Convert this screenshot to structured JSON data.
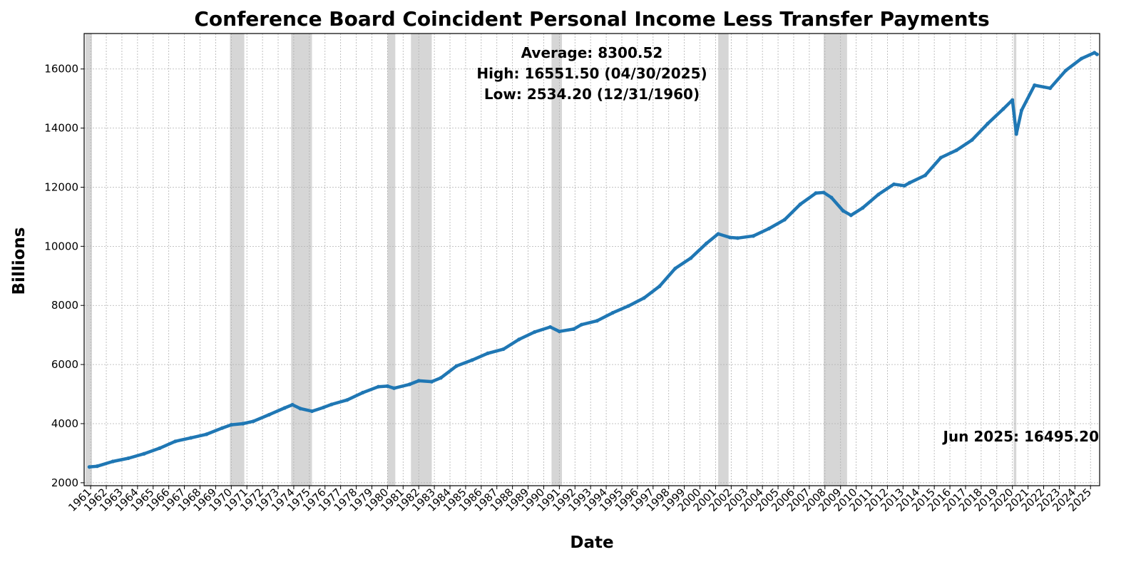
{
  "chart_data": {
    "type": "line",
    "title": "Conference Board Coincident Personal Income Less Transfer Payments",
    "xlabel": "Date",
    "ylabel": "Billions",
    "ylim": [
      1900,
      17200
    ],
    "xlim": [
      "1960-08",
      "2025-08"
    ],
    "yticks": [
      2000,
      4000,
      6000,
      8000,
      10000,
      12000,
      14000,
      16000
    ],
    "xticks": [
      "1961",
      "1962",
      "1963",
      "1964",
      "1965",
      "1966",
      "1967",
      "1968",
      "1969",
      "1970",
      "1971",
      "1972",
      "1973",
      "1974",
      "1975",
      "1976",
      "1977",
      "1978",
      "1979",
      "1980",
      "1981",
      "1982",
      "1983",
      "1984",
      "1985",
      "1986",
      "1987",
      "1988",
      "1989",
      "1990",
      "1991",
      "1992",
      "1993",
      "1994",
      "1995",
      "1996",
      "1997",
      "1998",
      "1999",
      "2000",
      "2001",
      "2002",
      "2003",
      "2004",
      "2005",
      "2006",
      "2007",
      "2008",
      "2009",
      "2010",
      "2011",
      "2012",
      "2013",
      "2014",
      "2015",
      "2016",
      "2017",
      "2018",
      "2019",
      "2020",
      "2021",
      "2022",
      "2023",
      "2024",
      "2025"
    ],
    "grid": true,
    "series_color": "#1f77b4",
    "recession_color": "#c8c8c8",
    "recessions": [
      [
        "1960-09",
        "1961-02"
      ],
      [
        "1969-12",
        "1970-11"
      ],
      [
        "1973-11",
        "1975-03"
      ],
      [
        "1980-01",
        "1980-07"
      ],
      [
        "1981-07",
        "1982-11"
      ],
      [
        "1990-07",
        "1991-03"
      ],
      [
        "2001-03",
        "2001-11"
      ],
      [
        "2007-12",
        "2009-06"
      ],
      [
        "2020-02",
        "2020-04"
      ]
    ],
    "series": [
      {
        "anchors": [
          [
            "1960-12",
            2534.2
          ],
          [
            "1961-06",
            2560
          ],
          [
            "1962-06",
            2720
          ],
          [
            "1963-06",
            2830
          ],
          [
            "1964-06",
            2980
          ],
          [
            "1965-06",
            3170
          ],
          [
            "1966-06",
            3400
          ],
          [
            "1967-06",
            3520
          ],
          [
            "1968-06",
            3640
          ],
          [
            "1969-06",
            3850
          ],
          [
            "1970-01",
            3960
          ],
          [
            "1970-10",
            4000
          ],
          [
            "1971-06",
            4080
          ],
          [
            "1972-06",
            4300
          ],
          [
            "1973-06",
            4530
          ],
          [
            "1973-12",
            4640
          ],
          [
            "1974-06",
            4510
          ],
          [
            "1975-03",
            4420
          ],
          [
            "1975-12",
            4550
          ],
          [
            "1976-06",
            4650
          ],
          [
            "1977-06",
            4800
          ],
          [
            "1978-06",
            5050
          ],
          [
            "1979-06",
            5250
          ],
          [
            "1980-01",
            5270
          ],
          [
            "1980-06",
            5200
          ],
          [
            "1981-06",
            5330
          ],
          [
            "1982-01",
            5450
          ],
          [
            "1982-11",
            5420
          ],
          [
            "1983-06",
            5550
          ],
          [
            "1984-06",
            5950
          ],
          [
            "1985-06",
            6150
          ],
          [
            "1986-06",
            6380
          ],
          [
            "1987-06",
            6520
          ],
          [
            "1988-06",
            6850
          ],
          [
            "1989-06",
            7100
          ],
          [
            "1990-06",
            7270
          ],
          [
            "1991-01",
            7120
          ],
          [
            "1991-12",
            7200
          ],
          [
            "1992-06",
            7350
          ],
          [
            "1993-06",
            7480
          ],
          [
            "1994-06",
            7750
          ],
          [
            "1995-06",
            7980
          ],
          [
            "1996-06",
            8250
          ],
          [
            "1997-06",
            8650
          ],
          [
            "1998-06",
            9250
          ],
          [
            "1999-06",
            9600
          ],
          [
            "2000-06",
            10100
          ],
          [
            "2001-03",
            10420
          ],
          [
            "2001-12",
            10300
          ],
          [
            "2002-06",
            10280
          ],
          [
            "2003-06",
            10350
          ],
          [
            "2004-06",
            10600
          ],
          [
            "2005-06",
            10900
          ],
          [
            "2006-06",
            11420
          ],
          [
            "2007-06",
            11800
          ],
          [
            "2007-12",
            11820
          ],
          [
            "2008-06",
            11650
          ],
          [
            "2009-03",
            11200
          ],
          [
            "2009-09",
            11050
          ],
          [
            "2010-06",
            11300
          ],
          [
            "2011-06",
            11750
          ],
          [
            "2012-06",
            12100
          ],
          [
            "2013-02",
            12050
          ],
          [
            "2013-06",
            12150
          ],
          [
            "2014-06",
            12400
          ],
          [
            "2015-06",
            13000
          ],
          [
            "2016-06",
            13250
          ],
          [
            "2017-06",
            13600
          ],
          [
            "2018-06",
            14150
          ],
          [
            "2019-06",
            14650
          ],
          [
            "2020-01",
            14950
          ],
          [
            "2020-04",
            13800
          ],
          [
            "2020-08",
            14600
          ],
          [
            "2021-06",
            15450
          ],
          [
            "2022-06",
            15350
          ],
          [
            "2023-06",
            15950
          ],
          [
            "2024-06",
            16350
          ],
          [
            "2025-04",
            16551.5
          ],
          [
            "2025-06",
            16495.2
          ]
        ]
      }
    ],
    "annotations": {
      "stats": [
        "Average: 8300.52",
        "High: 16551.50 (04/30/2025)",
        "Low: 2534.20 (12/31/1960)"
      ],
      "last_value": "Jun 2025: 16495.20"
    }
  }
}
